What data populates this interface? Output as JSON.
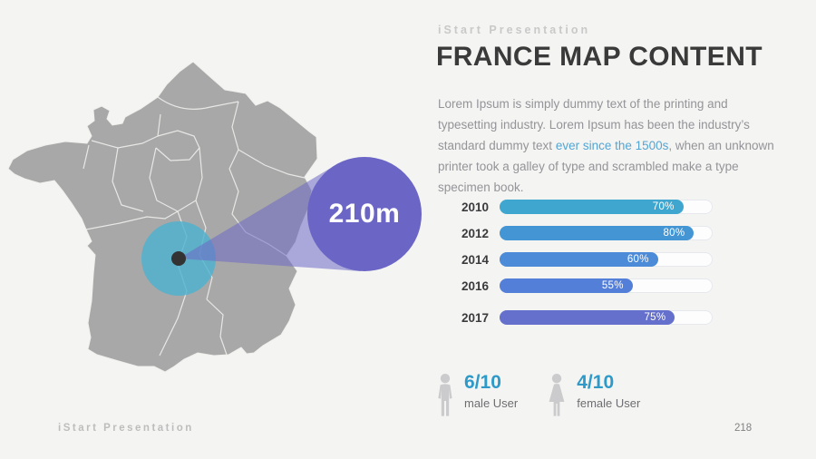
{
  "slide": {
    "eyebrow": "iStart Presentation",
    "title": "FRANCE MAP CONTENT",
    "description": {
      "part1": "Lorem Ipsum is simply dummy text of the printing and typesetting industry. Lorem Ipsum has been the industry’s standard dummy text ",
      "link": "ever since the 1500s",
      "part2": ", when an unknown printer took a galley of type and scrambled make a type specimen book."
    },
    "footer_left": "iStart Presentation",
    "page_number": "218"
  },
  "map": {
    "callout_value": "210m",
    "map_color": "#a8a8a8",
    "region_border_color": "#f2f2f0",
    "highlight_color": "rgba(77,178,208,0.82)",
    "marker_color": "#333333",
    "cone_color": "rgba(110,104,198,0.55)",
    "callout_color": "#6b66c6"
  },
  "chart_data": {
    "type": "bar",
    "orientation": "horizontal",
    "categories": [
      "2010",
      "2012",
      "2014",
      "2016",
      "2017"
    ],
    "values": [
      70,
      80,
      60,
      55,
      75
    ],
    "value_labels": [
      "70%",
      "80%",
      "60%",
      "55%",
      "75%"
    ],
    "fill_percents": [
      87,
      92,
      75,
      63,
      83
    ],
    "bar_colors": [
      "#3fa7cf",
      "#4495d4",
      "#4b8bd7",
      "#547fd8",
      "#6470cb"
    ],
    "xlim": [
      0,
      100
    ],
    "title": "",
    "xlabel": "",
    "ylabel": ""
  },
  "stats": [
    {
      "icon": "male-icon",
      "value": "6/10",
      "label": "male User"
    },
    {
      "icon": "female-icon",
      "value": "4/10",
      "label": "female User"
    }
  ],
  "accent_blue": "#2d9ac9"
}
